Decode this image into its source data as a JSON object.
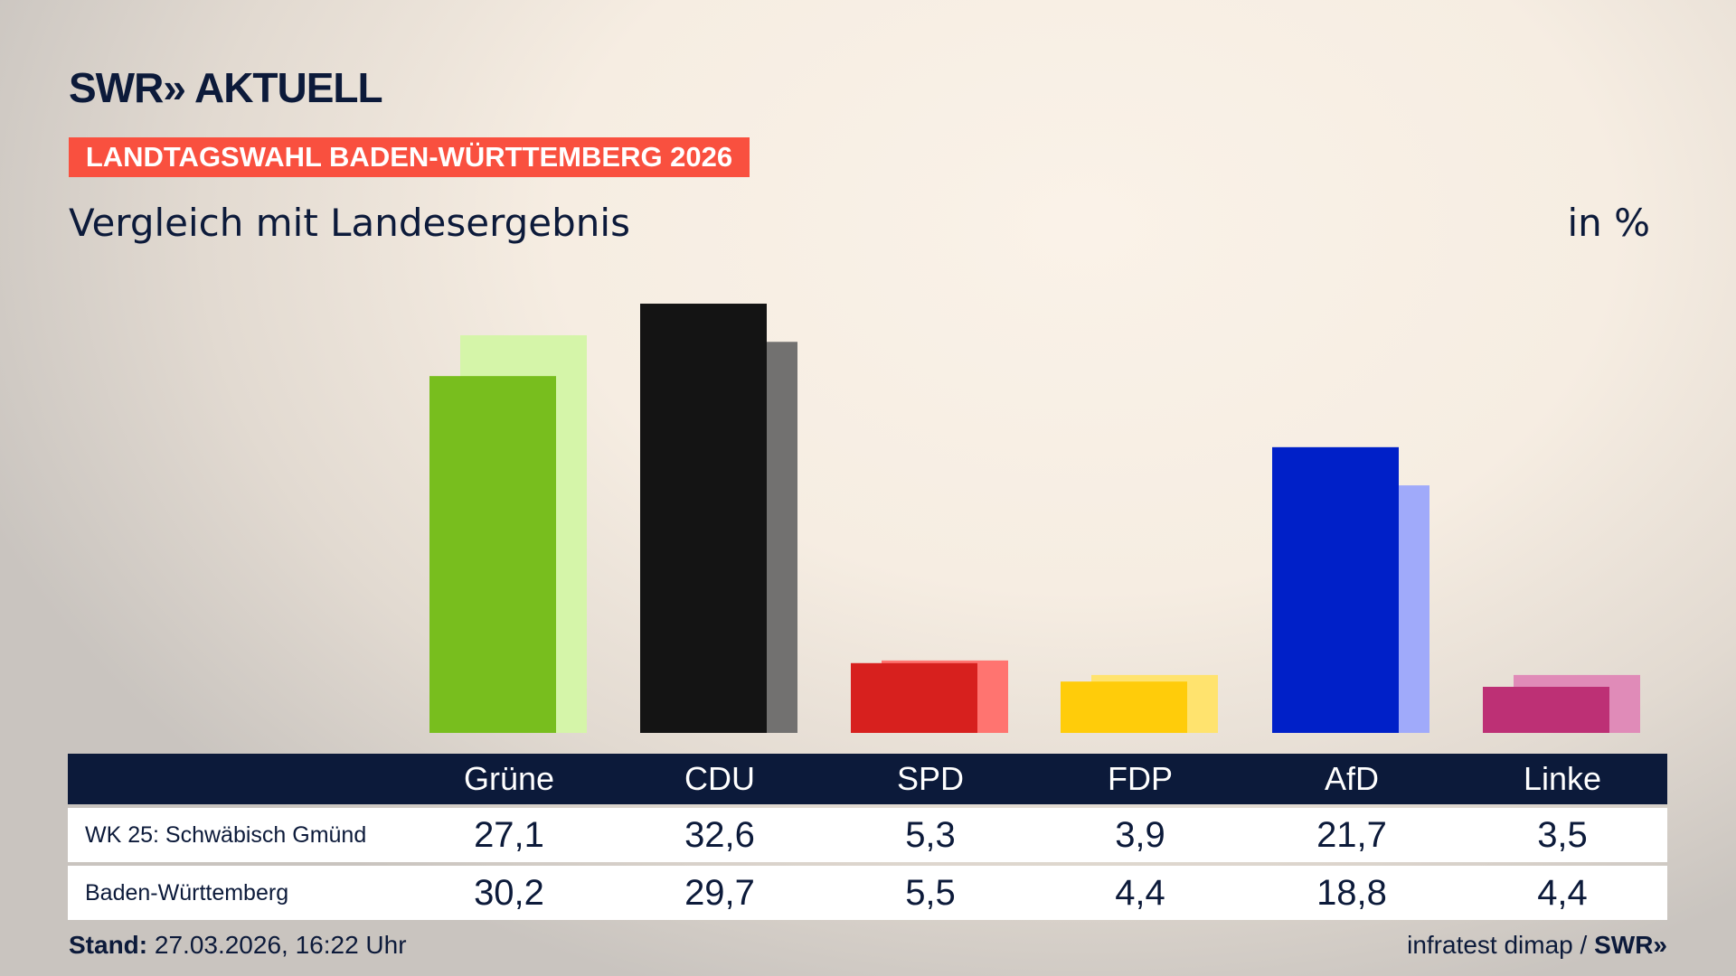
{
  "header": {
    "logo": "SWR» AKTUELL",
    "banner": "LANDTAGSWAHL BADEN-WÜRTTEMBERG 2026",
    "subtitle": "Vergleich mit Landesergebnis",
    "unit": "in %"
  },
  "chart_data": {
    "type": "bar",
    "categories": [
      "Grüne",
      "CDU",
      "SPD",
      "FDP",
      "AfD",
      "Linke"
    ],
    "series": [
      {
        "name": "WK 25: Schwäbisch Gmünd",
        "values": [
          27.1,
          32.6,
          5.3,
          3.9,
          21.7,
          3.5
        ],
        "colors": [
          "#78be1e",
          "#141414",
          "#d7201e",
          "#ffcc0a",
          "#0020c8",
          "#bd3075"
        ]
      },
      {
        "name": "Baden-Württemberg",
        "values": [
          30.2,
          29.7,
          5.5,
          4.4,
          18.8,
          4.4
        ],
        "colors": [
          "#d5f5a9",
          "#727170",
          "#ff7470",
          "#ffe36e",
          "#a0aafa",
          "#e08bb8"
        ]
      }
    ],
    "display_values": [
      [
        "27,1",
        "32,6",
        "5,3",
        "3,9",
        "21,7",
        "3,5"
      ],
      [
        "30,2",
        "29,7",
        "5,5",
        "4,4",
        "18,8",
        "4,4"
      ]
    ],
    "ylim": [
      0,
      33
    ]
  },
  "footer": {
    "stand_label": "Stand:",
    "stand_value": " 27.03.2026, 16:22 Uhr",
    "source": "infratest dimap / ",
    "source_logo": "SWR»"
  }
}
